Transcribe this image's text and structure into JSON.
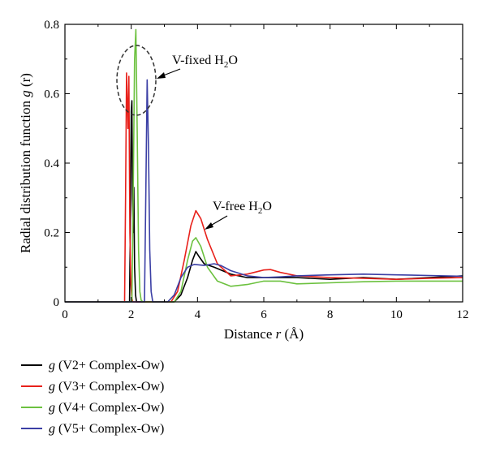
{
  "chart_data": {
    "type": "line",
    "xlabel_prefix": "Distance ",
    "xlabel_var": "r",
    "xlabel_suffix": " (Å)",
    "ylabel_prefix": "Radial distribution function ",
    "ylabel_var": "g",
    "ylabel_suffix": " (r)",
    "xlim": [
      0,
      12
    ],
    "ylim": [
      0,
      0.8
    ],
    "xticks": [
      0,
      2,
      4,
      6,
      8,
      10,
      12
    ],
    "yticks": [
      0,
      0.2,
      0.4,
      0.6,
      0.8
    ],
    "xtick_labels": [
      "0",
      "2",
      "4",
      "6",
      "8",
      "10",
      "12"
    ],
    "ytick_labels": [
      "0",
      "0.2",
      "0.4",
      "0.6",
      "0.8"
    ],
    "grid": false,
    "legend_position": "below",
    "annotations": {
      "fixed": {
        "label": "V-fixed H",
        "sub": "2",
        "suffix": "O"
      },
      "free": {
        "label": "V-free H",
        "sub": "2",
        "suffix": "O"
      }
    },
    "series": [
      {
        "name": "(V2+ Complex-Ow)",
        "name_var": "g",
        "color": "#000000",
        "x": [
          0,
          1.95,
          1.98,
          2.0,
          2.02,
          2.04,
          2.06,
          2.08,
          2.1,
          2.13,
          2.16,
          2.2,
          3.3,
          3.5,
          3.7,
          3.85,
          3.95,
          4.05,
          4.2,
          4.5,
          5.0,
          5.5,
          6.0,
          7.0,
          8.0,
          9.0,
          10.0,
          11.0,
          12.0
        ],
        "y": [
          0,
          0,
          0.3,
          0.55,
          0.58,
          0.3,
          0.2,
          0.33,
          0.1,
          0.02,
          0,
          0,
          0,
          0.02,
          0.07,
          0.12,
          0.145,
          0.13,
          0.11,
          0.1,
          0.08,
          0.07,
          0.07,
          0.07,
          0.065,
          0.07,
          0.065,
          0.07,
          0.075
        ]
      },
      {
        "name": "(V3+ Complex-Ow)",
        "name_var": "g",
        "color": "#e8211b",
        "x": [
          0,
          1.8,
          1.83,
          1.86,
          1.9,
          1.93,
          1.96,
          1.99,
          2.02,
          2.05,
          2.1,
          3.2,
          3.4,
          3.6,
          3.8,
          3.95,
          4.1,
          4.3,
          4.6,
          5.0,
          5.5,
          6.0,
          6.2,
          6.5,
          7.0,
          8.0,
          9.0,
          10.0,
          11.0,
          12.0
        ],
        "y": [
          0,
          0,
          0.3,
          0.66,
          0.5,
          0.65,
          0.2,
          0.05,
          0.01,
          0,
          0,
          0,
          0.03,
          0.12,
          0.22,
          0.263,
          0.24,
          0.18,
          0.11,
          0.075,
          0.08,
          0.092,
          0.093,
          0.085,
          0.075,
          0.07,
          0.068,
          0.065,
          0.068,
          0.07
        ]
      },
      {
        "name": "(V4+ Complex-Ow)",
        "name_var": "g",
        "color": "#6cc13f",
        "x": [
          0,
          2.02,
          2.06,
          2.1,
          2.14,
          2.18,
          2.22,
          2.26,
          2.3,
          2.35,
          3.3,
          3.5,
          3.7,
          3.85,
          3.95,
          4.1,
          4.3,
          4.6,
          5.0,
          5.5,
          6.0,
          6.5,
          7.0,
          8.0,
          9.0,
          10.0,
          11.0,
          12.0
        ],
        "y": [
          0,
          0,
          0.3,
          0.7,
          0.785,
          0.5,
          0.15,
          0.03,
          0.005,
          0,
          0,
          0.03,
          0.12,
          0.175,
          0.185,
          0.16,
          0.1,
          0.06,
          0.045,
          0.05,
          0.06,
          0.06,
          0.052,
          0.055,
          0.058,
          0.06,
          0.06,
          0.06
        ]
      },
      {
        "name": "(V5+ Complex-Ow)",
        "name_var": "g",
        "color": "#3b3fa5",
        "x": [
          0,
          2.4,
          2.44,
          2.48,
          2.52,
          2.56,
          2.6,
          2.65,
          3.1,
          3.3,
          3.5,
          3.7,
          3.9,
          4.2,
          4.5,
          4.7,
          5.0,
          5.5,
          6.0,
          6.5,
          7.0,
          8.0,
          9.0,
          10.0,
          11.0,
          12.0
        ],
        "y": [
          0,
          0,
          0.3,
          0.64,
          0.45,
          0.15,
          0.03,
          0,
          0,
          0.02,
          0.07,
          0.1,
          0.108,
          0.105,
          0.11,
          0.105,
          0.09,
          0.075,
          0.07,
          0.072,
          0.075,
          0.078,
          0.08,
          0.078,
          0.076,
          0.074
        ]
      }
    ]
  }
}
